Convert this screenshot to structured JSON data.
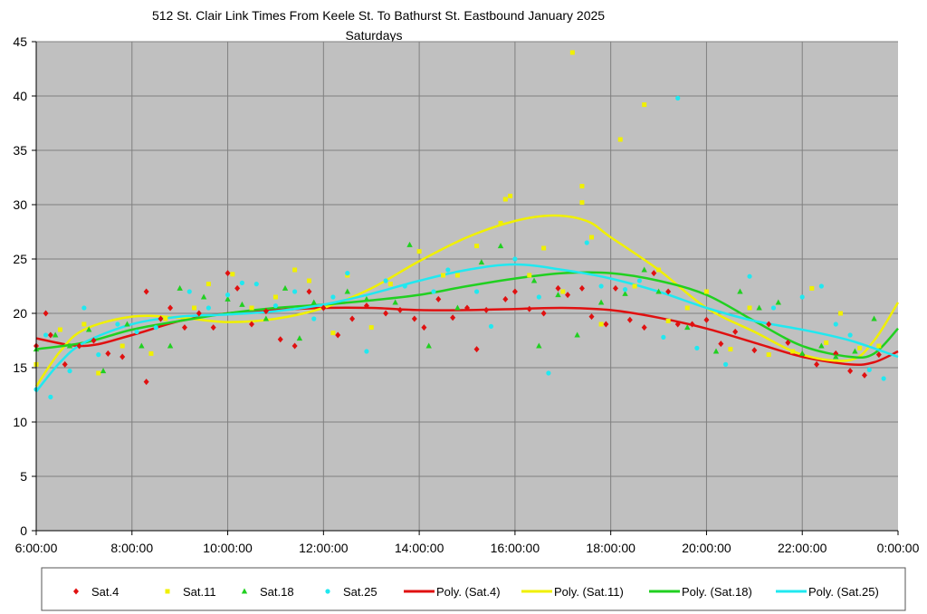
{
  "chart_data": {
    "type": "scatter",
    "title": "512 St. Clair Link Times From Keele St. To Bathurst St. Eastbound January 2025",
    "subtitle": "Saturdays",
    "xlabel": "",
    "ylabel": "",
    "xlim": [
      6,
      24
    ],
    "ylim": [
      0,
      45
    ],
    "x_ticks": [
      6,
      8,
      10,
      12,
      14,
      16,
      18,
      20,
      22,
      24
    ],
    "x_tick_labels": [
      "6:00:00",
      "8:00:00",
      "10:00:00",
      "12:00:00",
      "14:00:00",
      "16:00:00",
      "18:00:00",
      "20:00:00",
      "22:00:00",
      "0:00:00"
    ],
    "y_ticks": [
      0,
      5,
      10,
      15,
      20,
      25,
      30,
      35,
      40,
      45
    ],
    "grid": true,
    "legend_position": "bottom",
    "series": [
      {
        "name": "Sat.4",
        "color": "#e01010",
        "marker": "diamond",
        "points": [
          [
            6,
            17
          ],
          [
            6.2,
            20
          ],
          [
            6.3,
            18
          ],
          [
            6.6,
            15.3
          ],
          [
            6.9,
            17
          ],
          [
            7.2,
            17.5
          ],
          [
            7.5,
            16.3
          ],
          [
            7.8,
            16
          ],
          [
            8.3,
            13.7
          ],
          [
            8.3,
            22
          ],
          [
            8.6,
            19.5
          ],
          [
            8.8,
            20.5
          ],
          [
            9.1,
            18.7
          ],
          [
            9.4,
            20
          ],
          [
            9.7,
            18.7
          ],
          [
            10,
            23.7
          ],
          [
            10.2,
            22.3
          ],
          [
            10.5,
            19
          ],
          [
            10.8,
            20.2
          ],
          [
            11.1,
            17.6
          ],
          [
            11.4,
            17
          ],
          [
            11.7,
            22
          ],
          [
            12,
            20.5
          ],
          [
            12.3,
            18
          ],
          [
            12.6,
            19.5
          ],
          [
            12.9,
            20.7
          ],
          [
            13.3,
            20
          ],
          [
            13.6,
            20.3
          ],
          [
            13.9,
            19.5
          ],
          [
            14.1,
            18.7
          ],
          [
            14.4,
            21.3
          ],
          [
            14.7,
            19.6
          ],
          [
            15,
            20.5
          ],
          [
            15.2,
            16.7
          ],
          [
            15.4,
            20.3
          ],
          [
            15.8,
            21.3
          ],
          [
            16,
            22
          ],
          [
            16.3,
            20.4
          ],
          [
            16.6,
            20
          ],
          [
            16.9,
            22.3
          ],
          [
            17.1,
            21.7
          ],
          [
            17.4,
            22.3
          ],
          [
            17.6,
            19.7
          ],
          [
            17.9,
            19
          ],
          [
            18.1,
            22.3
          ],
          [
            18.4,
            19.4
          ],
          [
            18.7,
            18.7
          ],
          [
            18.9,
            23.7
          ],
          [
            19.2,
            22
          ],
          [
            19.4,
            19
          ],
          [
            19.7,
            19
          ],
          [
            20,
            19.4
          ],
          [
            20.3,
            17.2
          ],
          [
            20.6,
            18.3
          ],
          [
            21,
            16.6
          ],
          [
            21.3,
            19
          ],
          [
            21.7,
            17.3
          ],
          [
            22,
            16.2
          ],
          [
            22.3,
            15.3
          ],
          [
            22.7,
            16.3
          ],
          [
            23,
            14.7
          ],
          [
            23.3,
            14.3
          ],
          [
            23.6,
            16.2
          ]
        ]
      },
      {
        "name": "Sat.11",
        "color": "#f0f000",
        "marker": "square",
        "points": [
          [
            6,
            15.3
          ],
          [
            6.5,
            18.5
          ],
          [
            7,
            19
          ],
          [
            7.3,
            14.5
          ],
          [
            7.8,
            17
          ],
          [
            8.4,
            16.3
          ],
          [
            8.7,
            19.5
          ],
          [
            9.3,
            20.5
          ],
          [
            9.6,
            22.7
          ],
          [
            10.1,
            23.6
          ],
          [
            10.5,
            20.5
          ],
          [
            11,
            21.5
          ],
          [
            11.4,
            24
          ],
          [
            11.7,
            23
          ],
          [
            12.2,
            18.2
          ],
          [
            12.5,
            23.5
          ],
          [
            13,
            18.7
          ],
          [
            13.4,
            22.7
          ],
          [
            14,
            25.7
          ],
          [
            14.5,
            23.5
          ],
          [
            14.8,
            23.5
          ],
          [
            15.2,
            26.2
          ],
          [
            15.7,
            28.3
          ],
          [
            15.8,
            30.5
          ],
          [
            15.9,
            30.8
          ],
          [
            16.3,
            23.5
          ],
          [
            16.6,
            26
          ],
          [
            17,
            22
          ],
          [
            17.2,
            44
          ],
          [
            17.4,
            31.7
          ],
          [
            17.4,
            30.2
          ],
          [
            17.6,
            27
          ],
          [
            17.8,
            19
          ],
          [
            18.2,
            36
          ],
          [
            18.5,
            22.5
          ],
          [
            18.7,
            39.2
          ],
          [
            19,
            24
          ],
          [
            19.2,
            19.3
          ],
          [
            19.6,
            20.5
          ],
          [
            20,
            22
          ],
          [
            20.5,
            16.7
          ],
          [
            20.9,
            20.5
          ],
          [
            21.3,
            16.2
          ],
          [
            21.8,
            16.5
          ],
          [
            22.2,
            22.3
          ],
          [
            22.5,
            17.3
          ],
          [
            22.8,
            20
          ],
          [
            23.2,
            16.8
          ],
          [
            23.6,
            17
          ]
        ]
      },
      {
        "name": "Sat.18",
        "color": "#20d020",
        "marker": "triangle",
        "points": [
          [
            6,
            16.7
          ],
          [
            6.4,
            18
          ],
          [
            6.7,
            17
          ],
          [
            7.1,
            18.5
          ],
          [
            7.4,
            14.7
          ],
          [
            7.9,
            19
          ],
          [
            8.2,
            17
          ],
          [
            8.8,
            17
          ],
          [
            9,
            22.3
          ],
          [
            9.5,
            21.5
          ],
          [
            10,
            21.3
          ],
          [
            10.3,
            20.8
          ],
          [
            10.8,
            19.5
          ],
          [
            11.2,
            22.3
          ],
          [
            11.5,
            17.7
          ],
          [
            11.8,
            21
          ],
          [
            12.5,
            22
          ],
          [
            12.9,
            21.3
          ],
          [
            13.5,
            21
          ],
          [
            13.8,
            26.3
          ],
          [
            14.2,
            17
          ],
          [
            14.8,
            20.5
          ],
          [
            15.3,
            24.7
          ],
          [
            15.7,
            26.2
          ],
          [
            16.4,
            23
          ],
          [
            16.5,
            17
          ],
          [
            16.9,
            21.7
          ],
          [
            17.3,
            18
          ],
          [
            17.8,
            21
          ],
          [
            18.3,
            21.8
          ],
          [
            18.7,
            24
          ],
          [
            19,
            22
          ],
          [
            19.6,
            18.7
          ],
          [
            20.2,
            16.5
          ],
          [
            20.7,
            22
          ],
          [
            21.1,
            20.5
          ],
          [
            21.5,
            21
          ],
          [
            22,
            16.3
          ],
          [
            22.4,
            17
          ],
          [
            22.7,
            16
          ],
          [
            23.1,
            16.5
          ],
          [
            23.5,
            19.5
          ]
        ]
      },
      {
        "name": "Sat.25",
        "color": "#20e8f0",
        "marker": "circle",
        "points": [
          [
            6,
            13
          ],
          [
            6.2,
            18
          ],
          [
            6.3,
            12.3
          ],
          [
            6.7,
            14.7
          ],
          [
            7,
            20.5
          ],
          [
            7.3,
            16.2
          ],
          [
            7.7,
            19
          ],
          [
            8.1,
            18.3
          ],
          [
            8.5,
            18.7
          ],
          [
            9.2,
            22
          ],
          [
            9.6,
            20.5
          ],
          [
            10,
            21.7
          ],
          [
            10.3,
            22.8
          ],
          [
            10.6,
            22.7
          ],
          [
            11,
            20.7
          ],
          [
            11.4,
            22
          ],
          [
            11.8,
            19.5
          ],
          [
            12.2,
            21.5
          ],
          [
            12.5,
            23.7
          ],
          [
            12.9,
            16.5
          ],
          [
            13.3,
            23
          ],
          [
            13.7,
            22.5
          ],
          [
            14.3,
            22
          ],
          [
            14.6,
            24
          ],
          [
            15.2,
            22
          ],
          [
            15.5,
            18.8
          ],
          [
            16,
            25
          ],
          [
            16.5,
            21.5
          ],
          [
            16.7,
            14.5
          ],
          [
            17.5,
            26.5
          ],
          [
            17.8,
            22.5
          ],
          [
            18.3,
            22.2
          ],
          [
            18.6,
            23
          ],
          [
            19.1,
            17.8
          ],
          [
            19.4,
            39.8
          ],
          [
            19.8,
            16.8
          ],
          [
            20.4,
            15.3
          ],
          [
            20.9,
            23.4
          ],
          [
            21.4,
            20.5
          ],
          [
            22,
            21.5
          ],
          [
            22.4,
            22.5
          ],
          [
            22.7,
            19
          ],
          [
            23,
            18
          ],
          [
            23.4,
            14.8
          ],
          [
            23.7,
            14
          ]
        ]
      }
    ],
    "trendlines": [
      {
        "name": "Poly. (Sat.4)",
        "color": "#e01010",
        "points": [
          [
            6,
            17.7
          ],
          [
            7,
            17
          ],
          [
            8,
            18
          ],
          [
            9,
            19.3
          ],
          [
            10,
            20
          ],
          [
            11,
            20.3
          ],
          [
            12,
            20.5
          ],
          [
            13,
            20.5
          ],
          [
            14,
            20.3
          ],
          [
            15,
            20.3
          ],
          [
            16,
            20.4
          ],
          [
            17,
            20.5
          ],
          [
            18,
            20.3
          ],
          [
            19,
            19.6
          ],
          [
            20,
            18.6
          ],
          [
            21,
            17.3
          ],
          [
            22,
            16
          ],
          [
            23,
            15.3
          ],
          [
            23.5,
            15.5
          ],
          [
            24,
            16.5
          ]
        ]
      },
      {
        "name": "Poly. (Sat.11)",
        "color": "#f0f000",
        "points": [
          [
            6,
            13.3
          ],
          [
            6.5,
            16.5
          ],
          [
            7,
            18.5
          ],
          [
            8,
            19.7
          ],
          [
            9,
            19.6
          ],
          [
            10,
            19.2
          ],
          [
            11,
            19.5
          ],
          [
            12,
            20.5
          ],
          [
            13,
            22.3
          ],
          [
            14,
            24.8
          ],
          [
            15,
            27
          ],
          [
            16,
            28.5
          ],
          [
            16.8,
            29
          ],
          [
            17.5,
            28.5
          ],
          [
            18,
            27
          ],
          [
            19,
            24
          ],
          [
            20,
            20.5
          ],
          [
            21,
            18.3
          ],
          [
            22,
            16.2
          ],
          [
            23,
            15.7
          ],
          [
            23.5,
            17.5
          ],
          [
            24,
            21
          ]
        ]
      },
      {
        "name": "Poly. (Sat.18)",
        "color": "#20d020",
        "points": [
          [
            6,
            16.7
          ],
          [
            7,
            17.3
          ],
          [
            8,
            18.5
          ],
          [
            9,
            19.3
          ],
          [
            10,
            20
          ],
          [
            11,
            20.5
          ],
          [
            12,
            20.8
          ],
          [
            13,
            21.2
          ],
          [
            14,
            21.7
          ],
          [
            15,
            22.5
          ],
          [
            16,
            23.2
          ],
          [
            17,
            23.7
          ],
          [
            18,
            23.7
          ],
          [
            19,
            23
          ],
          [
            20,
            21.7
          ],
          [
            21,
            19.3
          ],
          [
            22,
            17
          ],
          [
            23,
            16
          ],
          [
            23.5,
            16.3
          ],
          [
            24,
            18.6
          ]
        ]
      },
      {
        "name": "Poly. (Sat.25)",
        "color": "#20e8f0",
        "points": [
          [
            6,
            12.8
          ],
          [
            6.5,
            15.5
          ],
          [
            7,
            17.3
          ],
          [
            8,
            19
          ],
          [
            9,
            19.7
          ],
          [
            10,
            19.9
          ],
          [
            11,
            20.2
          ],
          [
            12,
            20.8
          ],
          [
            13,
            21.8
          ],
          [
            14,
            23
          ],
          [
            15,
            24
          ],
          [
            16,
            24.5
          ],
          [
            17,
            24
          ],
          [
            18,
            23.2
          ],
          [
            19,
            22
          ],
          [
            20,
            20.5
          ],
          [
            21,
            19.3
          ],
          [
            22,
            18.5
          ],
          [
            23,
            17.5
          ],
          [
            24,
            16
          ]
        ]
      }
    ]
  }
}
